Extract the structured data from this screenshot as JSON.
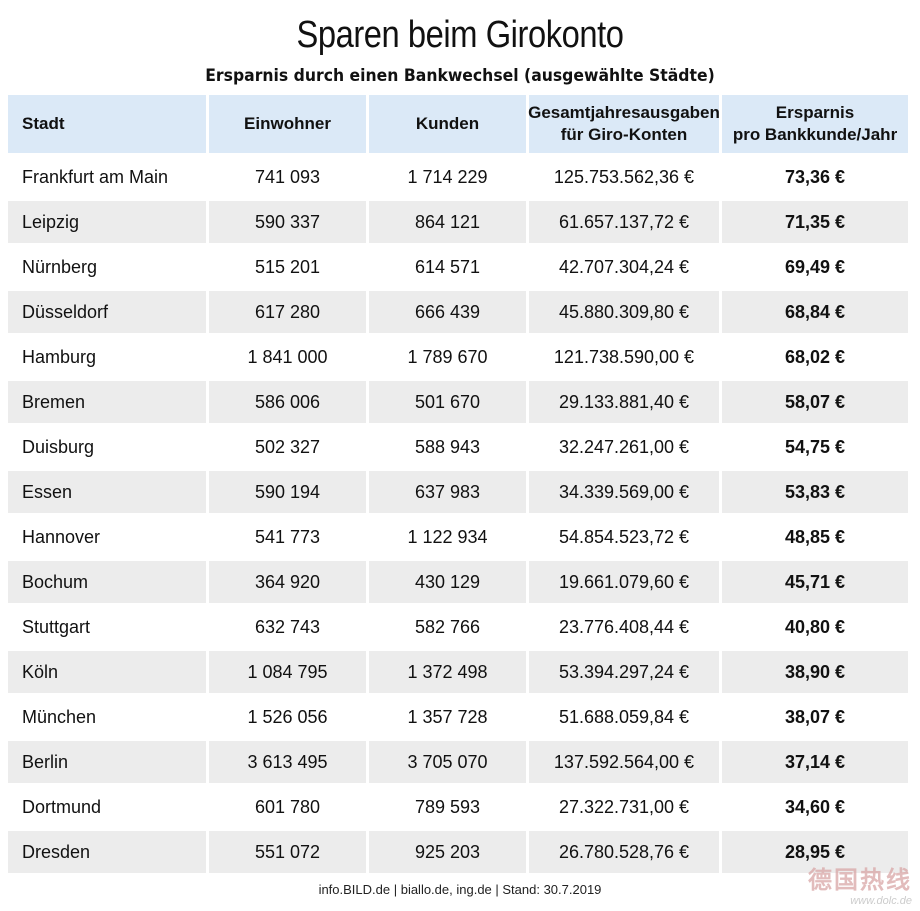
{
  "title": "Sparen beim Girokonto",
  "subtitle": "Ersparnis durch einen Bankwechsel (ausgewählte Städte)",
  "table": {
    "headers": [
      {
        "line1": "Stadt",
        "line2": ""
      },
      {
        "line1": "Einwohner",
        "line2": ""
      },
      {
        "line1": "Kunden",
        "line2": ""
      },
      {
        "line1": "Gesamtjahresausgaben",
        "line2": "für Giro-Konten"
      },
      {
        "line1": "Ersparnis",
        "line2": "pro Bankkunde/Jahr"
      }
    ],
    "rows": [
      [
        "Frankfurt am Main",
        "741 093",
        "1 714 229",
        "125.753.562,36 €",
        "73,36 €"
      ],
      [
        "Leipzig",
        "590 337",
        "864 121",
        "61.657.137,72 €",
        "71,35 €"
      ],
      [
        "Nürnberg",
        "515 201",
        "614 571",
        "42.707.304,24 €",
        "69,49 €"
      ],
      [
        "Düsseldorf",
        "617 280",
        "666 439",
        "45.880.309,80 €",
        "68,84 €"
      ],
      [
        "Hamburg",
        "1 841 000",
        "1 789 670",
        "121.738.590,00 €",
        "68,02 €"
      ],
      [
        "Bremen",
        "586 006",
        "501 670",
        "29.133.881,40 €",
        "58,07 €"
      ],
      [
        "Duisburg",
        "502 327",
        "588 943",
        "32.247.261,00 €",
        "54,75 €"
      ],
      [
        "Essen",
        "590 194",
        "637 983",
        "34.339.569,00 €",
        "53,83 €"
      ],
      [
        "Hannover",
        "541 773",
        "1 122 934",
        "54.854.523,72 €",
        "48,85 €"
      ],
      [
        "Bochum",
        "364 920",
        "430 129",
        "19.661.079,60 €",
        "45,71 €"
      ],
      [
        "Stuttgart",
        "632 743",
        "582 766",
        "23.776.408,44 €",
        "40,80 €"
      ],
      [
        "Köln",
        "1 084 795",
        "1 372 498",
        "53.394.297,24 €",
        "38,90 €"
      ],
      [
        "München",
        "1 526 056",
        "1 357 728",
        "51.688.059,84 €",
        "38,07 €"
      ],
      [
        "Berlin",
        "3 613 495",
        "3 705 070",
        "137.592.564,00 €",
        "37,14 €"
      ],
      [
        "Dortmund",
        "601 780",
        "789 593",
        "27.322.731,00 €",
        "34,60 €"
      ],
      [
        "Dresden",
        "551 072",
        "925 203",
        "26.780.528,76 €",
        "28,95 €"
      ]
    ]
  },
  "footer": "info.BILD.de | biallo.de, ing.de | Stand: 30.7.2019",
  "watermark": {
    "text": "德国热线",
    "url": "www.dolc.de"
  }
}
